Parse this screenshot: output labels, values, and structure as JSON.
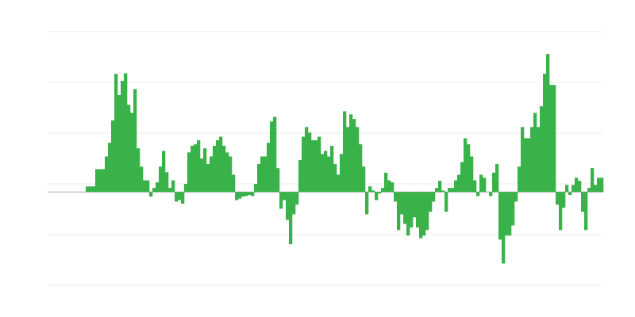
{
  "chart_data": {
    "type": "bar",
    "title": "",
    "xlabel": "",
    "ylabel": "",
    "grid": true,
    "ylim": [
      -18.4,
      31.6
    ],
    "gridlines": [
      31.6,
      21.6,
      11.6,
      1.6,
      -8.4,
      -18.4
    ],
    "colors": {
      "bar": "#39b24a",
      "grid": "#ececec",
      "baseline": "#aaaaaa"
    },
    "values": [
      1.1,
      1.1,
      1.1,
      4.5,
      4.5,
      4.5,
      7.0,
      9.7,
      14.1,
      23.3,
      19.1,
      21.9,
      23.4,
      17.2,
      15.6,
      20.3,
      8.6,
      5.0,
      2.3,
      2.3,
      -0.9,
      0.8,
      1.9,
      5.0,
      8.1,
      3.9,
      0.8,
      2.3,
      -1.9,
      -1.6,
      -2.3,
      1.6,
      7.8,
      9.1,
      9.4,
      10.2,
      6.6,
      8.6,
      5.5,
      7.0,
      9.1,
      10.2,
      10.9,
      9.1,
      7.8,
      7.0,
      3.4,
      -1.6,
      -1.3,
      -0.9,
      -0.8,
      -0.6,
      -0.8,
      1.6,
      5.5,
      7.0,
      7.0,
      9.7,
      13.9,
      14.8,
      4.7,
      -3.3,
      -1.6,
      -5.5,
      -10.3,
      -4.4,
      -2.5,
      6.3,
      10.9,
      12.8,
      11.7,
      10.2,
      10.2,
      10.9,
      7.5,
      8.1,
      7.0,
      9.1,
      5.5,
      3.4,
      7.5,
      15.9,
      12.8,
      15.3,
      14.4,
      12.8,
      9.4,
      5.0,
      -4.4,
      1.1,
      0.3,
      -1.6,
      -0.3,
      0.8,
      3.8,
      2.3,
      1.9,
      -1.9,
      -7.5,
      -4.4,
      -6.3,
      -8.6,
      -7.0,
      -5.0,
      -7.0,
      -9.1,
      -8.6,
      -7.5,
      -3.9,
      -1.9,
      0.8,
      2.2,
      0.3,
      -3.9,
      0.8,
      0.8,
      2.3,
      3.4,
      5.9,
      10.6,
      9.4,
      7.0,
      2.3,
      -0.8,
      3.4,
      2.8,
      0,
      -0.8,
      3.8,
      5.5,
      -9.4,
      -14.1,
      -8.6,
      -8.6,
      -6.6,
      -1.9,
      5.0,
      12.8,
      10.6,
      10.6,
      12.8,
      15.6,
      12.8,
      16.9,
      23.3,
      27.2,
      21.1,
      21.1,
      -2.5,
      -7.5,
      -3.1,
      1.4,
      -0.6,
      1.4,
      2.8,
      2.2,
      -3.9,
      -7.5,
      0.8,
      4.7,
      1.4,
      2.8,
      2.8
    ]
  }
}
